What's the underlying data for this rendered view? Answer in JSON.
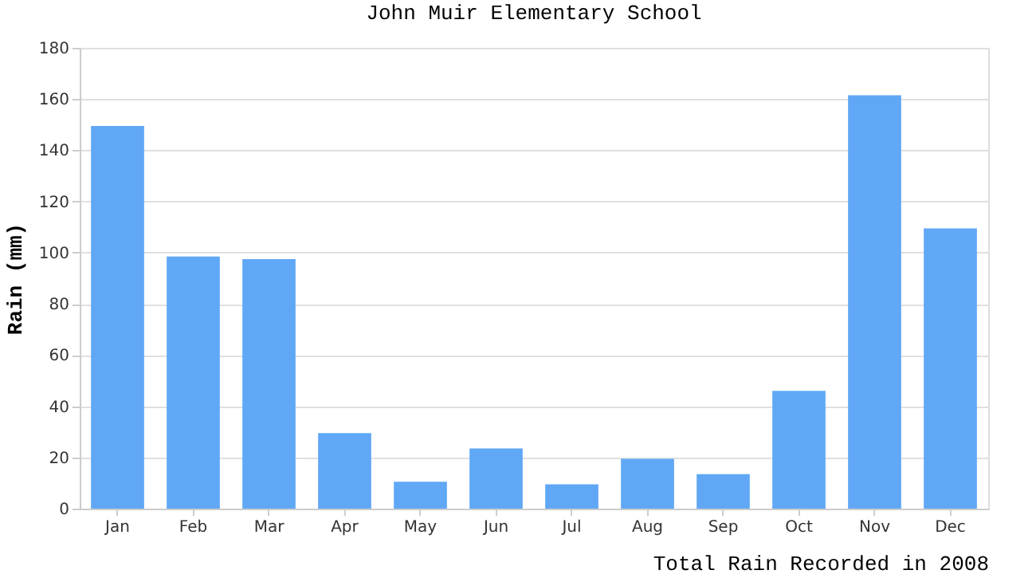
{
  "chart_data": {
    "type": "bar",
    "title": "John Muir Elementary School",
    "xlabel": "Total Rain Recorded in 2008",
    "ylabel": "Rain (mm)",
    "categories": [
      "Jan",
      "Feb",
      "Mar",
      "Apr",
      "May",
      "Jun",
      "Jul",
      "Aug",
      "Sep",
      "Oct",
      "Nov",
      "Dec"
    ],
    "values": [
      149.5,
      98.5,
      97.5,
      29.5,
      10.5,
      23.5,
      9.5,
      19.5,
      13.5,
      46,
      161.5,
      109.5
    ],
    "color": "#60a8f5",
    "ylim": [
      0,
      180
    ],
    "yticks": [
      0,
      20,
      40,
      60,
      80,
      100,
      120,
      140,
      160,
      180
    ],
    "grid": "y"
  }
}
